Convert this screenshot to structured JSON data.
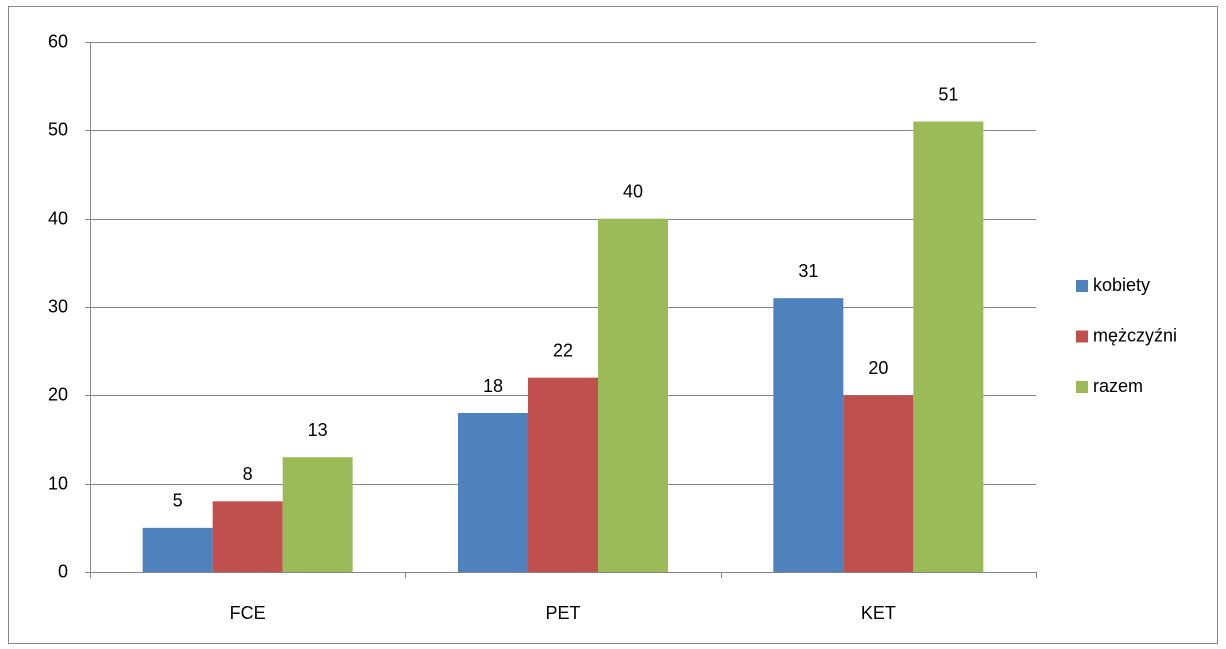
{
  "chart_data": {
    "type": "bar",
    "categories": [
      "FCE",
      "PET",
      "KET"
    ],
    "series": [
      {
        "name": "kobiety",
        "color": "#4f81bd",
        "values": [
          5,
          18,
          31
        ]
      },
      {
        "name": "mężczyźni",
        "color": "#c0504d",
        "values": [
          8,
          22,
          20
        ]
      },
      {
        "name": "razem",
        "color": "#9bbb59",
        "values": [
          13,
          40,
          51
        ]
      }
    ],
    "ylim": [
      0,
      60
    ],
    "yticks": [
      0,
      10,
      20,
      30,
      40,
      50,
      60
    ],
    "grid": true,
    "legend": "right"
  }
}
